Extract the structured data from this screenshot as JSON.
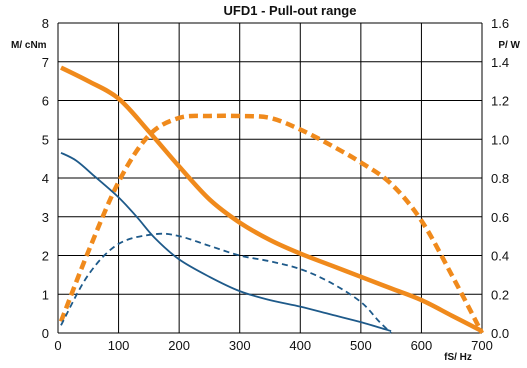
{
  "chart_data": {
    "type": "line",
    "title": "UFD1 - Pull-out range",
    "xlabel": "fS/ Hz",
    "ylabel_left": "M/ cNm",
    "ylabel_right": "P/ W",
    "xlim": [
      0,
      700
    ],
    "ylim_left": [
      0,
      8
    ],
    "ylim_right": [
      0,
      1.6
    ],
    "x_ticks": [
      "0",
      "100",
      "200",
      "300",
      "400",
      "500",
      "600",
      "700"
    ],
    "y_left_ticks": [
      "0",
      "1",
      "2",
      "3",
      "4",
      "5",
      "6",
      "7",
      "8"
    ],
    "y_right_ticks": [
      "0.0",
      "0.2",
      "0.4",
      "0.6",
      "0.8",
      "1.0",
      "1.2",
      "1.4",
      "1.6"
    ],
    "grid": true,
    "series": [
      {
        "axis": "left",
        "color": "#f08a1c",
        "style": "solid",
        "weight": "thick",
        "points": [
          [
            5,
            6.85
          ],
          [
            50,
            6.5
          ],
          [
            100,
            6.05
          ],
          [
            150,
            5.2
          ],
          [
            200,
            4.3
          ],
          [
            250,
            3.45
          ],
          [
            300,
            2.85
          ],
          [
            350,
            2.4
          ],
          [
            400,
            2.05
          ],
          [
            450,
            1.75
          ],
          [
            500,
            1.45
          ],
          [
            550,
            1.15
          ],
          [
            600,
            0.85
          ],
          [
            650,
            0.45
          ],
          [
            700,
            0.05
          ]
        ]
      },
      {
        "axis": "right",
        "color": "#f08a1c",
        "style": "dashed",
        "weight": "thick",
        "points": [
          [
            5,
            0.06
          ],
          [
            50,
            0.42
          ],
          [
            100,
            0.78
          ],
          [
            150,
            1.02
          ],
          [
            200,
            1.11
          ],
          [
            250,
            1.12
          ],
          [
            300,
            1.12
          ],
          [
            350,
            1.11
          ],
          [
            400,
            1.05
          ],
          [
            450,
            0.97
          ],
          [
            500,
            0.88
          ],
          [
            550,
            0.77
          ],
          [
            600,
            0.58
          ],
          [
            650,
            0.3
          ],
          [
            700,
            0.0
          ]
        ]
      },
      {
        "axis": "left",
        "color": "#1e5a8a",
        "style": "solid",
        "weight": "thin",
        "points": [
          [
            5,
            4.65
          ],
          [
            30,
            4.45
          ],
          [
            60,
            4.05
          ],
          [
            100,
            3.5
          ],
          [
            130,
            3.0
          ],
          [
            160,
            2.45
          ],
          [
            200,
            1.9
          ],
          [
            250,
            1.45
          ],
          [
            300,
            1.08
          ],
          [
            350,
            0.85
          ],
          [
            400,
            0.68
          ],
          [
            450,
            0.48
          ],
          [
            500,
            0.28
          ],
          [
            550,
            0.05
          ]
        ]
      },
      {
        "axis": "right",
        "color": "#1e5a8a",
        "style": "dashed",
        "weight": "thin",
        "points": [
          [
            5,
            0.04
          ],
          [
            50,
            0.3
          ],
          [
            100,
            0.46
          ],
          [
            160,
            0.51
          ],
          [
            200,
            0.5
          ],
          [
            250,
            0.45
          ],
          [
            300,
            0.4
          ],
          [
            350,
            0.37
          ],
          [
            400,
            0.33
          ],
          [
            450,
            0.26
          ],
          [
            500,
            0.16
          ],
          [
            530,
            0.06
          ],
          [
            550,
            0.0
          ]
        ]
      }
    ]
  }
}
